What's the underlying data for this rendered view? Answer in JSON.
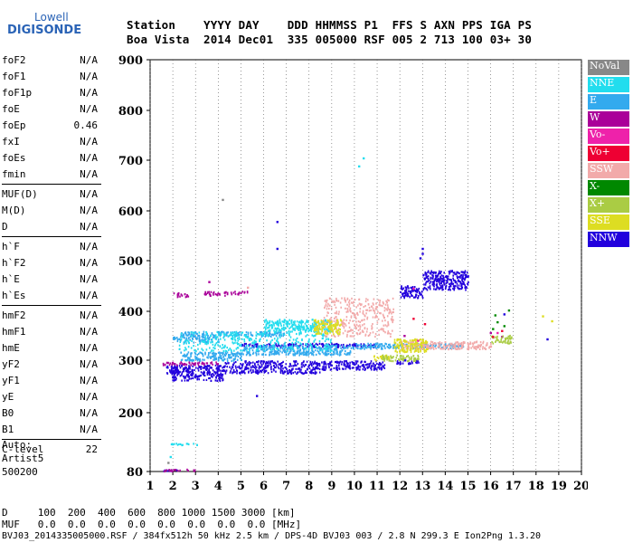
{
  "logo": {
    "line1": "Lowell",
    "line2": "DIGISONDE"
  },
  "header": {
    "line1": "Station    YYYY DAY    DDD HHMMSS P1  FFS S AXN PPS IGA PS",
    "line2": "Boa Vista  2014 Dec01  335 005000 RSF 005 2 713 100 03+ 30"
  },
  "params": [
    {
      "name": "foF2",
      "value": "N/A"
    },
    {
      "name": "foF1",
      "value": "N/A"
    },
    {
      "name": "foF1p",
      "value": "N/A"
    },
    {
      "name": "foE",
      "value": "N/A"
    },
    {
      "name": "foEp",
      "value": "0.46"
    },
    {
      "name": "fxI",
      "value": "N/A"
    },
    {
      "name": "foEs",
      "value": "N/A"
    },
    {
      "name": "fmin",
      "value": "N/A"
    },
    {
      "name": "MUF(D)",
      "value": "N/A"
    },
    {
      "name": "M(D)",
      "value": "N/A"
    },
    {
      "name": "D",
      "value": "N/A"
    },
    {
      "name": "h`F",
      "value": "N/A"
    },
    {
      "name": "h`F2",
      "value": "N/A"
    },
    {
      "name": "h`E",
      "value": "N/A"
    },
    {
      "name": "h`Es",
      "value": "N/A"
    },
    {
      "name": "hmF2",
      "value": "N/A"
    },
    {
      "name": "hmF1",
      "value": "N/A"
    },
    {
      "name": "hmE",
      "value": "N/A"
    },
    {
      "name": "yF2",
      "value": "N/A"
    },
    {
      "name": "yF1",
      "value": "N/A"
    },
    {
      "name": "yE",
      "value": "N/A"
    },
    {
      "name": "B0",
      "value": "N/A"
    },
    {
      "name": "B1",
      "value": "N/A"
    },
    {
      "name": "C-level",
      "value": "22"
    }
  ],
  "auto": {
    "line1": "Auto:",
    "line2": "Artist5",
    "line3": "500200"
  },
  "legend": [
    {
      "label": "NoVal",
      "color": "#888888"
    },
    {
      "label": "NNE",
      "color": "#22ddee"
    },
    {
      "label": "E",
      "color": "#33aaee"
    },
    {
      "label": "W",
      "color": "#aa0099"
    },
    {
      "label": "Vo-",
      "color": "#ee22aa"
    },
    {
      "label": "Vo+",
      "color": "#ee0033"
    },
    {
      "label": "SSW",
      "color": "#f2aaaa"
    },
    {
      "label": "X-",
      "color": "#008800"
    },
    {
      "label": "X+",
      "color": "#aacc44"
    },
    {
      "label": "SSE",
      "color": "#dddd22"
    },
    {
      "label": "NNW",
      "color": "#2200dd"
    }
  ],
  "bottom": {
    "line1": "D     100  200  400  600  800 1000 1500 3000 [km]",
    "line2": "MUF   0.0  0.0  0.0  0.0  0.0  0.0  0.0  0.0 [MHz]",
    "line3": "BVJ03_2014335005000.RSF / 384fx512h 50 kHz 2.5 km / DPS-4D BVJ03 003 / 2.8 N 299.3 E Ion2Png 1.3.20"
  },
  "chart_data": {
    "type": "scatter",
    "title": "",
    "xlabel": "",
    "ylabel": "",
    "xlim": [
      1,
      20
    ],
    "ylim": [
      80,
      900
    ],
    "xticks": [
      1,
      2,
      3,
      4,
      5,
      6,
      7,
      8,
      9,
      10,
      11,
      12,
      13,
      14,
      15,
      16,
      17,
      18,
      19,
      20
    ],
    "yticks": [
      80,
      200,
      300,
      400,
      500,
      600,
      700,
      800,
      900
    ],
    "grid": "dotted vertical lines at integer frequencies",
    "series": [
      {
        "name": "NNW",
        "color": "#2200dd",
        "bands": [
          {
            "x": [
              1.9,
              4.2
            ],
            "y": [
              262,
              292
            ]
          },
          {
            "x": [
              4.2,
              8.5
            ],
            "y": [
              276,
              300
            ]
          },
          {
            "x": [
              8.5,
              11.3
            ],
            "y": [
              283,
              300
            ]
          },
          {
            "x": [
              1.7,
              2.2
            ],
            "y": [
              276,
              290
            ]
          },
          {
            "x": [
              5.0,
              11.0
            ],
            "y": [
              328,
              336
            ]
          },
          {
            "x": [
              12.0,
              13.0
            ],
            "y": [
              428,
              452
            ]
          },
          {
            "x": [
              13.0,
              15.0
            ],
            "y": [
              444,
              482
            ]
          },
          {
            "x": [
              11.8,
              12.8
            ],
            "y": [
              294,
              302
            ]
          },
          {
            "x": [
              1.5,
              2.3
            ],
            "y": [
              82,
              86
            ]
          }
        ],
        "points": [
          [
            6.6,
            578
          ],
          [
            6.6,
            524
          ],
          [
            5.7,
            232
          ],
          [
            13.0,
            524
          ],
          [
            13.0,
            514
          ],
          [
            12.9,
            505
          ],
          [
            16.6,
            394
          ],
          [
            18.5,
            343
          ]
        ]
      },
      {
        "name": "E",
        "color": "#33aaee",
        "bands": [
          {
            "x": [
              2.3,
              5.0
            ],
            "y": [
              300,
              318
            ]
          },
          {
            "x": [
              5.0,
              9.8
            ],
            "y": [
              312,
              332
            ]
          },
          {
            "x": [
              9.8,
              11.5
            ],
            "y": [
              325,
              336
            ]
          },
          {
            "x": [
              2.0,
              4.0
            ],
            "y": [
              338,
              350
            ]
          },
          {
            "x": [
              2.3,
              7.0
            ],
            "y": [
              350,
              360
            ]
          },
          {
            "x": [
              11.5,
              14.8
            ],
            "y": [
              326,
              336
            ]
          }
        ],
        "points": []
      },
      {
        "name": "NNE",
        "color": "#22ddee",
        "bands": [
          {
            "x": [
              2.2,
              9.0
            ],
            "y": [
              320,
              360
            ]
          },
          {
            "x": [
              6.0,
              9.0
            ],
            "y": [
              360,
              385
            ]
          },
          {
            "x": [
              1.9,
              3.1
            ],
            "y": [
              135,
              139
            ]
          }
        ],
        "points": [
          [
            10.2,
            688
          ],
          [
            10.4,
            704
          ],
          [
            1.9,
            110
          ]
        ]
      },
      {
        "name": "W",
        "color": "#aa0099",
        "bands": [
          {
            "x": [
              2.0,
              2.7
            ],
            "y": [
              430,
              438
            ]
          },
          {
            "x": [
              3.3,
              4.4
            ],
            "y": [
              432,
              440
            ]
          },
          {
            "x": [
              4.5,
              5.3
            ],
            "y": [
              435,
              441
            ]
          },
          {
            "x": [
              1.6,
              3.0
            ],
            "y": [
              82,
              86
            ]
          },
          {
            "x": [
              1.5,
              4.0
            ],
            "y": [
              292,
              298
            ]
          }
        ],
        "points": [
          [
            3.6,
            458
          ],
          [
            16.5,
            348
          ],
          [
            16.0,
            356
          ],
          [
            12.2,
            350
          ]
        ]
      },
      {
        "name": "SSW",
        "color": "#f2aaaa",
        "bands": [
          {
            "x": [
              8.6,
              11.7
            ],
            "y": [
              350,
              428
            ]
          },
          {
            "x": [
              12.0,
              16.0
            ],
            "y": [
              324,
              340
            ]
          }
        ],
        "points": [
          [
            5.3,
            447
          ]
        ]
      },
      {
        "name": "SSE",
        "color": "#dddd22",
        "bands": [
          {
            "x": [
              8.2,
              9.4
            ],
            "y": [
              355,
              385
            ]
          },
          {
            "x": [
              11.7,
              13.2
            ],
            "y": [
              318,
              345
            ]
          },
          {
            "x": [
              10.8,
              11.5
            ],
            "y": [
              300,
              312
            ]
          }
        ],
        "points": [
          [
            18.7,
            380
          ],
          [
            18.3,
            390
          ]
        ]
      },
      {
        "name": "X+",
        "color": "#aacc44",
        "bands": [
          {
            "x": [
              16.0,
              16.9
            ],
            "y": [
              336,
              352
            ]
          },
          {
            "x": [
              11.2,
              12.8
            ],
            "y": [
              300,
              312
            ]
          }
        ],
        "points": []
      },
      {
        "name": "X-",
        "color": "#008800",
        "bands": [],
        "points": [
          [
            16.1,
            364
          ],
          [
            16.3,
            378
          ],
          [
            16.2,
            392
          ],
          [
            16.6,
            370
          ],
          [
            16.8,
            402
          ]
        ]
      },
      {
        "name": "Vo+",
        "color": "#ee0033",
        "bands": [],
        "points": [
          [
            12.6,
            385
          ],
          [
            13.1,
            374
          ],
          [
            16.1,
            348
          ],
          [
            16.5,
            360
          ]
        ]
      },
      {
        "name": "Vo-",
        "color": "#ee22aa",
        "bands": [],
        "points": [
          [
            12.6,
            445
          ],
          [
            16.3,
            356
          ],
          [
            12.8,
            340
          ]
        ]
      },
      {
        "name": "NoVal",
        "color": "#888888",
        "bands": [],
        "points": [
          [
            4.2,
            622
          ],
          [
            1.8,
            98
          ]
        ]
      }
    ]
  }
}
